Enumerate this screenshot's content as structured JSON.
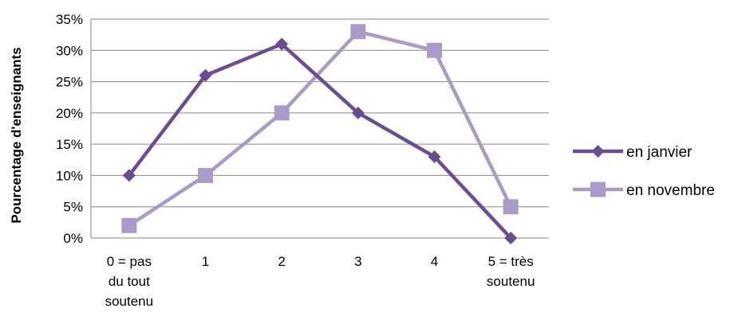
{
  "chart_data": {
    "type": "line",
    "categories": [
      [
        "0 = pas",
        "du tout",
        "soutenu"
      ],
      [
        "1"
      ],
      [
        "2"
      ],
      [
        "3"
      ],
      [
        "4"
      ],
      [
        "5 = très",
        "soutenu"
      ]
    ],
    "series": [
      {
        "name": "en janvier",
        "values": [
          10,
          26,
          31,
          20,
          13,
          0
        ],
        "color": "#6a4c93",
        "marker": "diamond"
      },
      {
        "name": "en novembre",
        "values": [
          2,
          10,
          20,
          33,
          30,
          5
        ],
        "color": "#a99ac7",
        "marker": "square"
      }
    ],
    "ylabel": "Pourcentage d'enseignants",
    "ylim": [
      0,
      35
    ],
    "yticks": [
      0,
      5,
      10,
      15,
      20,
      25,
      30,
      35
    ],
    "ytick_suffix": "%",
    "grid": "horizontal",
    "legend_position": "right",
    "gridline_color": "#868686"
  }
}
